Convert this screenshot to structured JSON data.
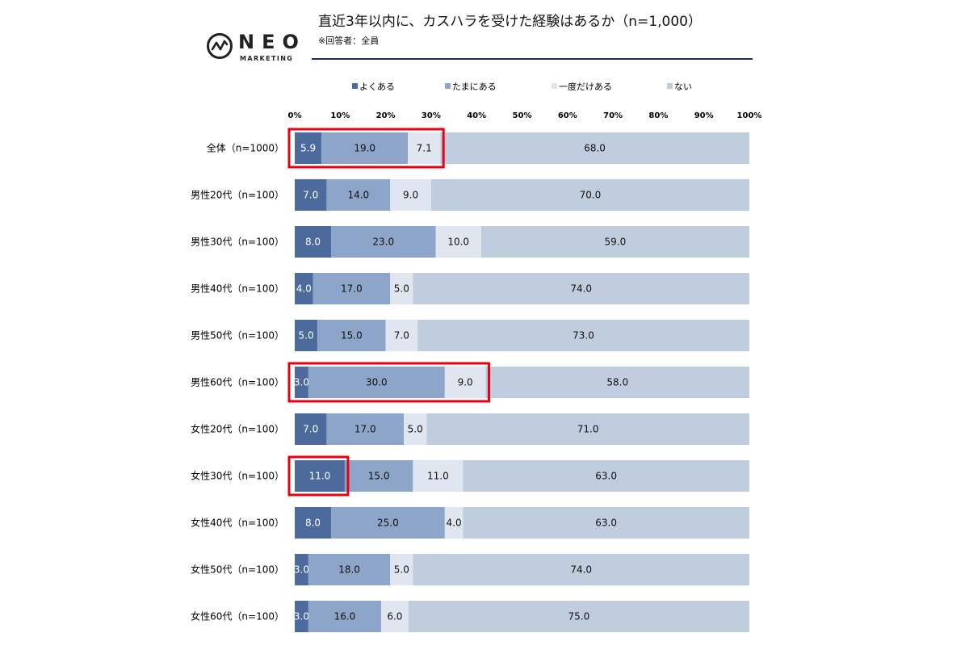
{
  "brand": {
    "name": "NEO",
    "sub": "MARKETING"
  },
  "header": {
    "title": "直近3年以内に、カスハラを受けた経験はあるか（n=1,000）",
    "note": "※回答者：全員"
  },
  "colors": {
    "series": [
      "#4c6a9c",
      "#8da5c8",
      "#e0e6ef",
      "#c0cddf"
    ],
    "highlight": "#e60012",
    "rule": "#1f2a5c"
  },
  "chart_data": {
    "type": "bar",
    "orientation": "horizontal-stacked-100",
    "x_ticks": [
      "0%",
      "10%",
      "20%",
      "30%",
      "40%",
      "50%",
      "60%",
      "70%",
      "80%",
      "90%",
      "100%"
    ],
    "xlim": [
      0,
      100
    ],
    "legend_position": "top",
    "categories": [
      "全体（n=1000）",
      "男性20代（n=100）",
      "男性30代（n=100）",
      "男性40代（n=100）",
      "男性50代（n=100）",
      "男性60代（n=100）",
      "女性20代（n=100）",
      "女性30代（n=100）",
      "女性40代（n=100）",
      "女性50代（n=100）",
      "女性60代（n=100）"
    ],
    "series": [
      {
        "name": "よくある",
        "values": [
          5.9,
          7.0,
          8.0,
          4.0,
          5.0,
          3.0,
          7.0,
          11.0,
          8.0,
          3.0,
          3.0
        ],
        "labels": [
          "5.9",
          "7.0",
          "8.0",
          "4.0",
          "5.0",
          "3.0",
          "7.0",
          "11.0",
          "8.0",
          "3.0",
          "3.0"
        ]
      },
      {
        "name": "たまにある",
        "values": [
          19.0,
          14.0,
          23.0,
          17.0,
          15.0,
          30.0,
          17.0,
          15.0,
          25.0,
          18.0,
          16.0
        ],
        "labels": [
          "19.0",
          "14.0",
          "23.0",
          "17.0",
          "15.0",
          "30.0",
          "17.0",
          "15.0",
          "25.0",
          "18.0",
          "16.0"
        ]
      },
      {
        "name": "一度だけある",
        "values": [
          7.1,
          9.0,
          10.0,
          5.0,
          7.0,
          9.0,
          5.0,
          11.0,
          4.0,
          5.0,
          6.0
        ],
        "labels": [
          "7.1",
          "9.0",
          "10.0",
          "5.0",
          "7.0",
          "9.0",
          "5.0",
          "11.0",
          "4.0",
          "5.0",
          "6.0"
        ]
      },
      {
        "name": "ない",
        "values": [
          68.0,
          70.0,
          59.0,
          74.0,
          73.0,
          58.0,
          71.0,
          63.0,
          63.0,
          74.0,
          75.0
        ],
        "labels": [
          "68.0",
          "70.0",
          "59.0",
          "74.0",
          "73.0",
          "58.0",
          "71.0",
          "63.0",
          "63.0",
          "74.0",
          "75.0"
        ]
      }
    ],
    "highlights": [
      {
        "row": 0,
        "series_from": 0,
        "series_to": 2
      },
      {
        "row": 5,
        "series_from": 0,
        "series_to": 2
      },
      {
        "row": 7,
        "series_from": 0,
        "series_to": 0
      }
    ]
  }
}
